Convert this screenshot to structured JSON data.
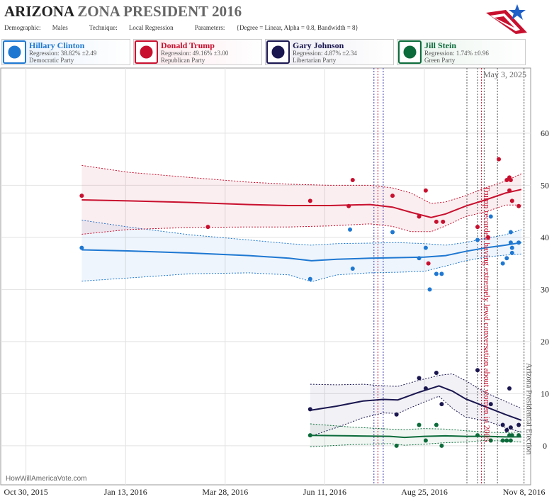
{
  "header": {
    "title_state": "ARIZONA",
    "title_rest": "ZONA PRESIDENT 2016",
    "demographic_label": "Demographic:",
    "demographic": "Males",
    "technique_label": "Technique:",
    "technique": "Local Regression",
    "parameters_label": "Parameters:",
    "parameters": "{Degree = Linear, Alpha = 0.8, Bandwidth = 8}"
  },
  "candidates": [
    {
      "name": "Hillary Clinton",
      "regression": "Regression: 38.82% ±2.49",
      "party": "Democratic Party",
      "color": "#1e78d2",
      "bg": "#e8f1fb",
      "icon": "donkey-icon"
    },
    {
      "name": "Donald Trump",
      "regression": "Regression: 49.16% ±3.00",
      "party": "Republican Party",
      "color": "#c8102e",
      "bg": "#fbe8ec",
      "icon": "elephant-icon"
    },
    {
      "name": "Gary Johnson",
      "regression": "Regression: 4.87% ±2.34",
      "party": "Libertarian Party",
      "color": "#1a1650",
      "bg": "#ececf3",
      "icon": "statue-of-liberty-icon"
    },
    {
      "name": "Jill Stein",
      "regression": "Regression: 1.74% ±0.96",
      "party": "Green Party",
      "color": "#0b6b3a",
      "bg": "#e8f3ec",
      "icon": "plant-icon"
    }
  ],
  "chart_data": {
    "type": "scatter",
    "date_stamp": "May 3, 2025",
    "watermark": "HowWillAmericaVote.com",
    "x_tick_labels": [
      "Oct 30, 2015",
      "Jan 13, 2016",
      "Mar 28, 2016",
      "Jun 11, 2016",
      "Aug 25, 2016",
      "Nov 8, 2016"
    ],
    "y_tick_labels": [
      "0",
      "10",
      "20",
      "30",
      "40",
      "50",
      "60"
    ],
    "xlim": [
      "2015-10-11",
      "2016-11-13"
    ],
    "ylim": [
      -7.5,
      72.5
    ],
    "annotations": [
      {
        "text": "Trump recorded having extremely lewd conversation about women in 2005",
        "date": "2016-10-07"
      },
      {
        "text": "Arizona Presidential Election",
        "date": "2016-11-08"
      }
    ],
    "event_lines": [
      {
        "date": "2016-07-18",
        "color": "#3b3bb0"
      },
      {
        "date": "2016-07-21",
        "color": "#c8102e"
      },
      {
        "date": "2016-07-25",
        "color": "#3b3bb0"
      },
      {
        "date": "2016-09-26",
        "color": "#555555"
      },
      {
        "date": "2016-10-04",
        "color": "#555555"
      },
      {
        "date": "2016-10-07",
        "color": "#c8102e"
      },
      {
        "date": "2016-10-09",
        "color": "#555555"
      },
      {
        "date": "2016-10-19",
        "color": "#555555"
      },
      {
        "date": "2016-11-08",
        "color": "#555555"
      }
    ],
    "series": [
      {
        "name": "Hillary Clinton",
        "color": "#1e78d2",
        "fill": "rgba(30,120,210,0.07)",
        "points": [
          [
            "2015-12-11",
            38
          ],
          [
            "2016-05-31",
            32
          ],
          [
            "2016-06-30",
            41.5
          ],
          [
            "2016-07-02",
            34
          ],
          [
            "2016-08-01",
            41
          ],
          [
            "2016-08-21",
            36
          ],
          [
            "2016-08-26",
            38
          ],
          [
            "2016-08-29",
            30
          ],
          [
            "2016-09-03",
            33
          ],
          [
            "2016-09-07",
            33
          ],
          [
            "2016-10-04",
            39.5
          ],
          [
            "2016-10-14",
            44
          ],
          [
            "2016-10-23",
            35
          ],
          [
            "2016-10-26",
            36
          ],
          [
            "2016-10-29",
            39
          ],
          [
            "2016-10-29",
            41
          ],
          [
            "2016-10-30",
            38
          ],
          [
            "2016-10-30",
            37
          ],
          [
            "2016-11-04",
            39
          ]
        ],
        "fit": [
          [
            "2015-12-11",
            37.6
          ],
          [
            "2016-01-15",
            37.4
          ],
          [
            "2016-03-01",
            37
          ],
          [
            "2016-04-15",
            36.5
          ],
          [
            "2016-05-15",
            36
          ],
          [
            "2016-06-01",
            35.5
          ],
          [
            "2016-06-20",
            35.8
          ],
          [
            "2016-07-15",
            36
          ],
          [
            "2016-08-05",
            36.1
          ],
          [
            "2016-08-25",
            36.2
          ],
          [
            "2016-09-10",
            36.5
          ],
          [
            "2016-09-25",
            37.3
          ],
          [
            "2016-10-10",
            38
          ],
          [
            "2016-10-25",
            38.5
          ],
          [
            "2016-11-06",
            39
          ]
        ],
        "upper": [
          [
            "2015-12-11",
            43.3
          ],
          [
            "2016-01-15",
            42
          ],
          [
            "2016-03-01",
            40.5
          ],
          [
            "2016-04-15",
            39.5
          ],
          [
            "2016-05-15",
            38.8
          ],
          [
            "2016-06-01",
            38.5
          ],
          [
            "2016-06-20",
            38.8
          ],
          [
            "2016-07-15",
            38.9
          ],
          [
            "2016-08-05",
            39
          ],
          [
            "2016-08-25",
            38.8
          ],
          [
            "2016-09-10",
            38.5
          ],
          [
            "2016-09-25",
            39
          ],
          [
            "2016-10-10",
            39.8
          ],
          [
            "2016-10-25",
            40.5
          ],
          [
            "2016-11-06",
            41.5
          ]
        ],
        "lower": [
          [
            "2015-12-11",
            31.6
          ],
          [
            "2016-01-15",
            32.2
          ],
          [
            "2016-03-01",
            33
          ],
          [
            "2016-04-15",
            33.2
          ],
          [
            "2016-05-15",
            32.8
          ],
          [
            "2016-06-01",
            31.5
          ],
          [
            "2016-06-20",
            32.8
          ],
          [
            "2016-07-15",
            33.2
          ],
          [
            "2016-08-05",
            33.3
          ],
          [
            "2016-08-25",
            33.5
          ],
          [
            "2016-09-10",
            34.5
          ],
          [
            "2016-09-25",
            35.5
          ],
          [
            "2016-10-10",
            36.2
          ],
          [
            "2016-10-25",
            36.6
          ],
          [
            "2016-11-06",
            36.8
          ]
        ]
      },
      {
        "name": "Donald Trump",
        "color": "#c8102e",
        "fill": "rgba(200,16,46,0.07)",
        "points": [
          [
            "2015-12-11",
            48
          ],
          [
            "2016-03-15",
            42
          ],
          [
            "2016-05-31",
            47
          ],
          [
            "2016-06-29",
            46
          ],
          [
            "2016-07-02",
            51
          ],
          [
            "2016-08-01",
            48
          ],
          [
            "2016-08-21",
            44
          ],
          [
            "2016-08-26",
            49
          ],
          [
            "2016-08-28",
            35
          ],
          [
            "2016-09-03",
            43
          ],
          [
            "2016-09-08",
            43
          ],
          [
            "2016-10-04",
            42
          ],
          [
            "2016-10-12",
            40
          ],
          [
            "2016-10-20",
            55
          ],
          [
            "2016-10-26",
            51
          ],
          [
            "2016-10-28",
            51.5
          ],
          [
            "2016-10-29",
            51
          ],
          [
            "2016-10-28",
            49
          ],
          [
            "2016-10-30",
            47
          ],
          [
            "2016-11-04",
            46
          ]
        ],
        "fit": [
          [
            "2015-12-11",
            47.2
          ],
          [
            "2016-01-15",
            47
          ],
          [
            "2016-03-01",
            46.7
          ],
          [
            "2016-04-15",
            46.3
          ],
          [
            "2016-05-15",
            46.1
          ],
          [
            "2016-06-15",
            46.1
          ],
          [
            "2016-07-15",
            46.3
          ],
          [
            "2016-08-01",
            45.8
          ],
          [
            "2016-08-15",
            44.8
          ],
          [
            "2016-08-30",
            43.8
          ],
          [
            "2016-09-10",
            44.5
          ],
          [
            "2016-09-25",
            46
          ],
          [
            "2016-10-10",
            47.2
          ],
          [
            "2016-10-25",
            48.5
          ],
          [
            "2016-11-06",
            49.2
          ]
        ],
        "upper": [
          [
            "2015-12-11",
            53.8
          ],
          [
            "2016-01-15",
            52.5
          ],
          [
            "2016-03-01",
            51.5
          ],
          [
            "2016-04-15",
            50.6
          ],
          [
            "2016-05-15",
            50.2
          ],
          [
            "2016-06-15",
            50
          ],
          [
            "2016-07-15",
            50
          ],
          [
            "2016-08-01",
            49.5
          ],
          [
            "2016-08-15",
            48.5
          ],
          [
            "2016-08-30",
            46.5
          ],
          [
            "2016-09-10",
            46.8
          ],
          [
            "2016-09-25",
            48
          ],
          [
            "2016-10-10",
            49.5
          ],
          [
            "2016-10-25",
            50.8
          ],
          [
            "2016-11-06",
            52.2
          ]
        ],
        "lower": [
          [
            "2015-12-11",
            40.6
          ],
          [
            "2016-01-15",
            41.5
          ],
          [
            "2016-03-01",
            41.9
          ],
          [
            "2016-04-15",
            42
          ],
          [
            "2016-05-15",
            42
          ],
          [
            "2016-06-15",
            42.2
          ],
          [
            "2016-07-15",
            42.6
          ],
          [
            "2016-08-01",
            42.1
          ],
          [
            "2016-08-15",
            41.1
          ],
          [
            "2016-08-30",
            41.1
          ],
          [
            "2016-09-10",
            42.2
          ],
          [
            "2016-09-25",
            44
          ],
          [
            "2016-10-10",
            44.9
          ],
          [
            "2016-10-25",
            46.2
          ],
          [
            "2016-11-06",
            46.2
          ]
        ]
      },
      {
        "name": "Gary Johnson",
        "color": "#1a1650",
        "fill": "rgba(26,22,80,0.06)",
        "points": [
          [
            "2016-05-31",
            7
          ],
          [
            "2016-08-04",
            6
          ],
          [
            "2016-08-21",
            13
          ],
          [
            "2016-08-26",
            11
          ],
          [
            "2016-09-03",
            14
          ],
          [
            "2016-09-07",
            8
          ],
          [
            "2016-10-04",
            14.5
          ],
          [
            "2016-10-14",
            8
          ],
          [
            "2016-10-23",
            4
          ],
          [
            "2016-10-26",
            3
          ],
          [
            "2016-10-28",
            11
          ],
          [
            "2016-10-29",
            3.5
          ],
          [
            "2016-11-04",
            4
          ]
        ],
        "fit": [
          [
            "2016-05-31",
            6.8
          ],
          [
            "2016-06-20",
            7.6
          ],
          [
            "2016-07-10",
            8.6
          ],
          [
            "2016-07-25",
            8.9
          ],
          [
            "2016-08-05",
            8.8
          ],
          [
            "2016-08-20",
            10.2
          ],
          [
            "2016-09-05",
            11.5
          ],
          [
            "2016-09-15",
            10.5
          ],
          [
            "2016-09-25",
            9
          ],
          [
            "2016-10-10",
            7.5
          ],
          [
            "2016-10-25",
            6
          ],
          [
            "2016-11-06",
            4.9
          ]
        ],
        "upper": [
          [
            "2016-05-31",
            11.8
          ],
          [
            "2016-06-20",
            11.7
          ],
          [
            "2016-07-10",
            11.8
          ],
          [
            "2016-07-25",
            11.5
          ],
          [
            "2016-08-05",
            11.4
          ],
          [
            "2016-08-20",
            12.5
          ],
          [
            "2016-09-05",
            13.5
          ],
          [
            "2016-09-15",
            13.8
          ],
          [
            "2016-09-25",
            12.5
          ],
          [
            "2016-10-10",
            10.2
          ],
          [
            "2016-10-25",
            8.5
          ],
          [
            "2016-11-06",
            7.2
          ]
        ],
        "lower": [
          [
            "2016-05-31",
            1.8
          ],
          [
            "2016-06-20",
            3.5
          ],
          [
            "2016-07-10",
            5.4
          ],
          [
            "2016-07-25",
            6.3
          ],
          [
            "2016-08-05",
            6.2
          ],
          [
            "2016-08-20",
            7.9
          ],
          [
            "2016-09-05",
            9.5
          ],
          [
            "2016-09-15",
            7.2
          ],
          [
            "2016-09-25",
            5.5
          ],
          [
            "2016-10-10",
            4.8
          ],
          [
            "2016-10-25",
            3.5
          ],
          [
            "2016-11-06",
            2.6
          ]
        ]
      },
      {
        "name": "Jill Stein",
        "color": "#0b6b3a",
        "fill": "rgba(11,107,58,0.06)",
        "points": [
          [
            "2016-05-31",
            2
          ],
          [
            "2016-08-04",
            0
          ],
          [
            "2016-08-21",
            4
          ],
          [
            "2016-08-26",
            1
          ],
          [
            "2016-09-03",
            4
          ],
          [
            "2016-09-07",
            0
          ],
          [
            "2016-10-04",
            2
          ],
          [
            "2016-10-14",
            1
          ],
          [
            "2016-10-23",
            1
          ],
          [
            "2016-10-26",
            1
          ],
          [
            "2016-10-28",
            2
          ],
          [
            "2016-10-29",
            1
          ],
          [
            "2016-10-30",
            2
          ],
          [
            "2016-11-04",
            2
          ]
        ],
        "fit": [
          [
            "2016-05-31",
            2
          ],
          [
            "2016-06-30",
            1.9
          ],
          [
            "2016-07-30",
            1.8
          ],
          [
            "2016-08-10",
            1.6
          ],
          [
            "2016-08-25",
            1.8
          ],
          [
            "2016-09-10",
            1.9
          ],
          [
            "2016-09-25",
            1.8
          ],
          [
            "2016-10-10",
            1.8
          ],
          [
            "2016-10-25",
            1.7
          ],
          [
            "2016-11-06",
            1.7
          ]
        ],
        "upper": [
          [
            "2016-05-31",
            4.2
          ],
          [
            "2016-06-30",
            3.6
          ],
          [
            "2016-07-30",
            3.2
          ],
          [
            "2016-08-10",
            3.1
          ],
          [
            "2016-08-25",
            3.3
          ],
          [
            "2016-09-10",
            3.2
          ],
          [
            "2016-09-25",
            2.9
          ],
          [
            "2016-10-10",
            2.6
          ],
          [
            "2016-10-25",
            2.5
          ],
          [
            "2016-11-06",
            2.7
          ]
        ],
        "lower": [
          [
            "2016-05-31",
            -0.2
          ],
          [
            "2016-06-30",
            0.2
          ],
          [
            "2016-07-30",
            0.4
          ],
          [
            "2016-08-10",
            0.1
          ],
          [
            "2016-08-25",
            0.3
          ],
          [
            "2016-09-10",
            0.6
          ],
          [
            "2016-09-25",
            0.7
          ],
          [
            "2016-10-10",
            1
          ],
          [
            "2016-10-25",
            0.9
          ],
          [
            "2016-11-06",
            0.7
          ]
        ]
      }
    ]
  }
}
